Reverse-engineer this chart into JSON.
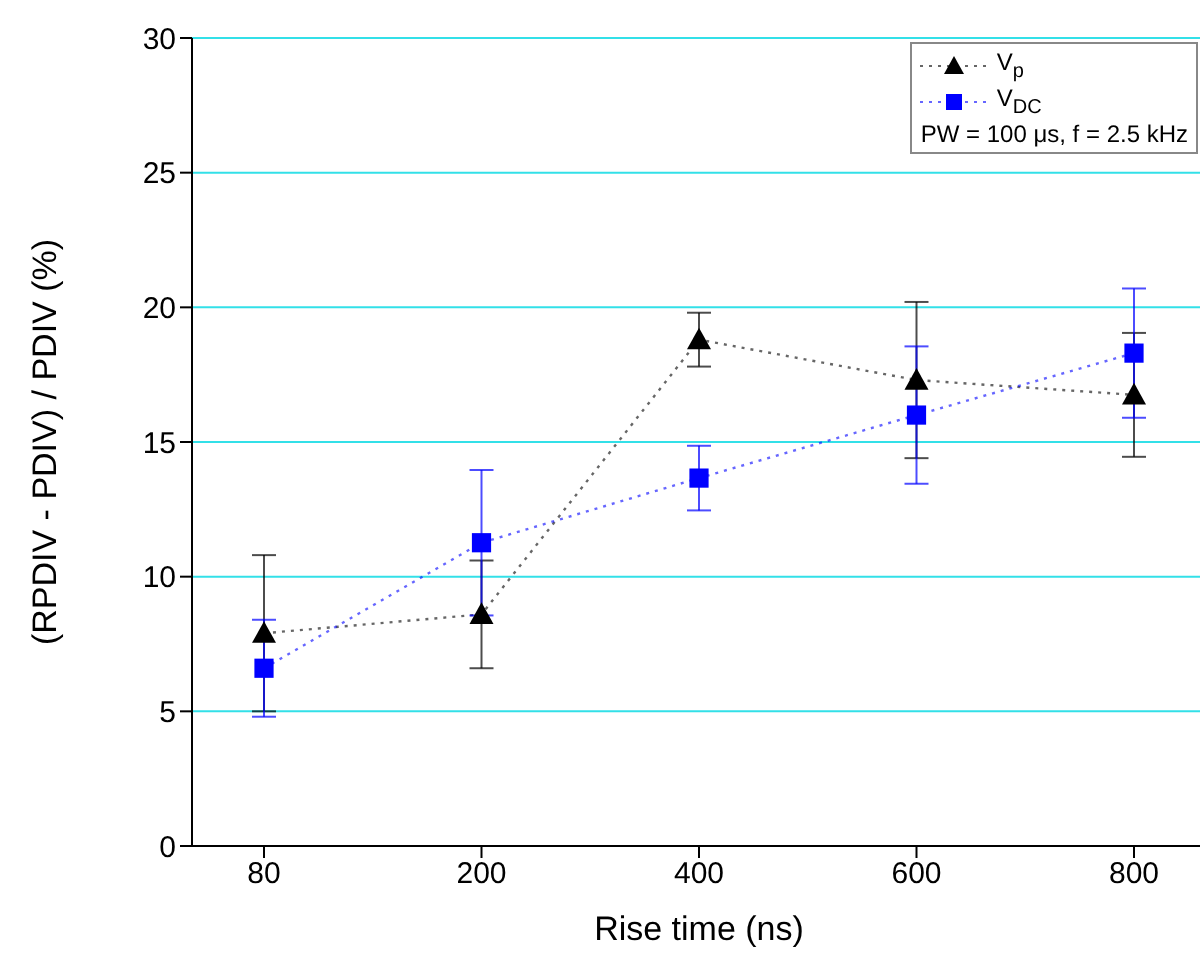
{
  "chart_data": {
    "type": "line",
    "xlabel": "Rise time (ns)",
    "ylabel": "(RPDIV - PDIV) / PDIV (%)",
    "categories": [
      "80",
      "200",
      "400",
      "600",
      "800"
    ],
    "series": [
      {
        "name": "V$_{p}$",
        "color": "#000000",
        "marker": "triangle",
        "values": [
          7.9,
          8.6,
          18.8,
          17.3,
          16.75
        ],
        "errors": [
          2.9,
          2.0,
          1.0,
          2.9,
          2.3
        ]
      },
      {
        "name": "V$_{DC}$",
        "color": "#0000ff",
        "marker": "square",
        "values": [
          6.6,
          11.26,
          13.66,
          16.0,
          18.3
        ],
        "errors": [
          1.8,
          2.7,
          1.2,
          2.55,
          2.4
        ]
      }
    ],
    "ylim": [
      0,
      30
    ],
    "yticks": [
      0,
      5,
      10,
      15,
      20,
      25,
      30
    ],
    "grid": "y",
    "legend": "top right",
    "line_style": "dotted",
    "annotations": [
      "PW = 100 μs, f = 2.5 kHz"
    ]
  }
}
